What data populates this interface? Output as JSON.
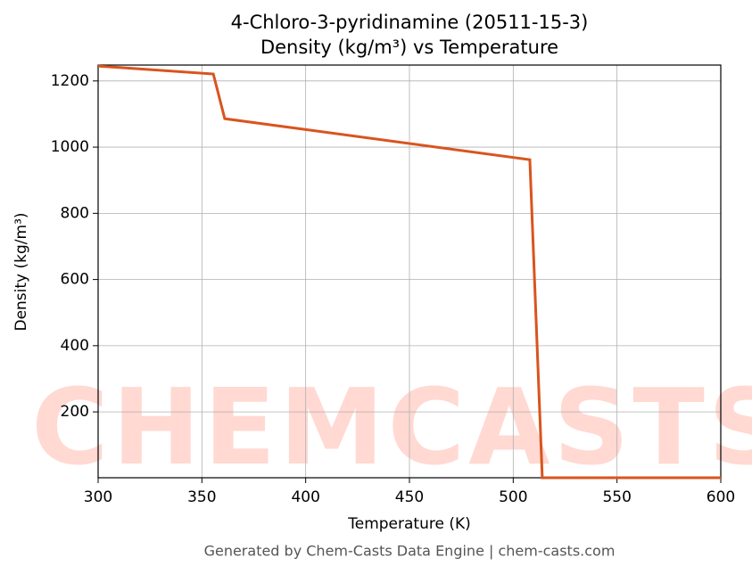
{
  "chart_data": {
    "type": "line",
    "title": "4-Chloro-3-pyridinamine (20511-15-3)",
    "subtitle": "Density (kg/m³) vs Temperature",
    "x_label": "Temperature (K)",
    "y_label": "Density (kg/m³)",
    "footer": "Generated by Chem-Casts Data Engine | chem-casts.com",
    "watermark": "CHEMCASTS",
    "x": [
      300,
      355.5,
      361,
      508,
      514,
      600
    ],
    "series": [
      {
        "name": "Density",
        "color": "#d9541e",
        "values": [
          1245,
          1221,
          1086,
          962,
          1,
          1
        ]
      }
    ],
    "xlim": [
      300,
      600
    ],
    "xticks": [
      300,
      350,
      400,
      450,
      500,
      550,
      600
    ],
    "ylim": [
      1,
      1248
    ],
    "yticks": [
      200,
      400,
      600,
      800,
      1000,
      1200
    ],
    "grid": true
  }
}
